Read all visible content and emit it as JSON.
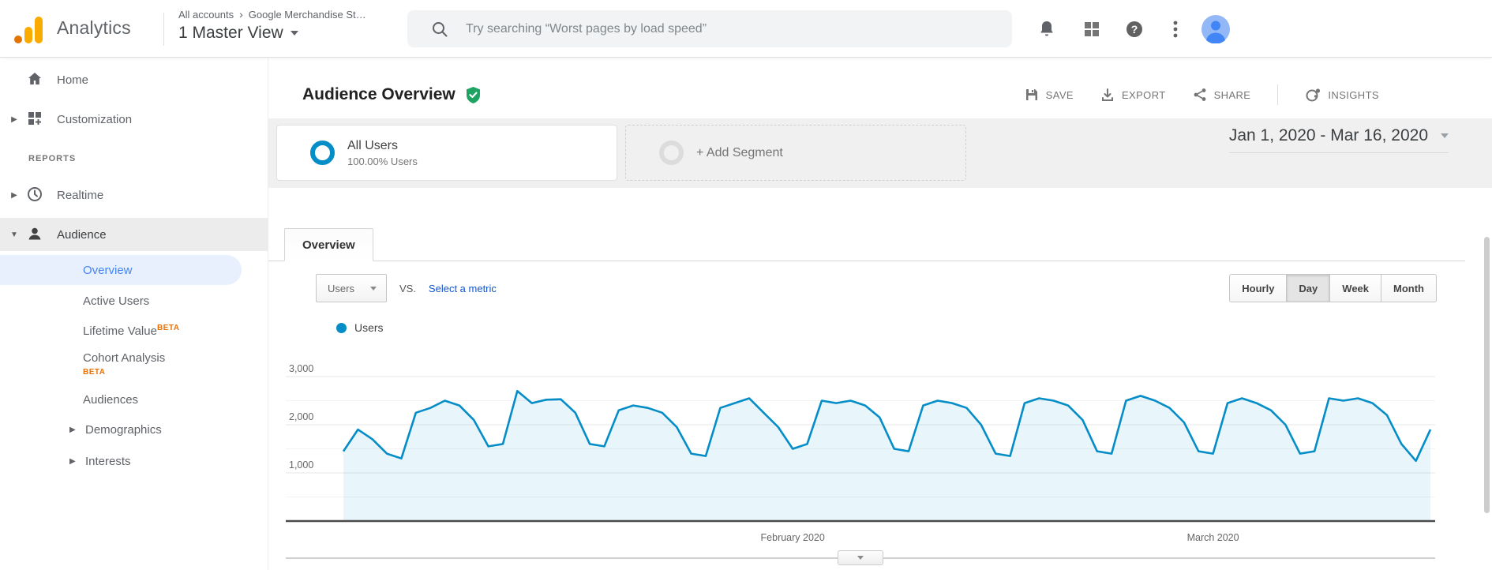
{
  "header": {
    "product": "Analytics",
    "breadcrumb": {
      "root": "All accounts",
      "separator": "›",
      "current": "Google Merchandise St…"
    },
    "view": "1 Master View",
    "search": {
      "placeholder": "Try searching “Worst pages by load speed”"
    }
  },
  "sidebar": {
    "home": "Home",
    "customization": "Customization",
    "section_reports": "REPORTS",
    "realtime": "Realtime",
    "audience": "Audience",
    "audience_children": [
      {
        "label": "Overview",
        "selected": true
      },
      {
        "label": "Active Users"
      },
      {
        "label": "Lifetime Value",
        "beta": "BETA"
      },
      {
        "label": "Cohort Analysis",
        "beta": "BETA"
      },
      {
        "label": "Audiences"
      },
      {
        "label": "Demographics",
        "expandable": true
      },
      {
        "label": "Interests",
        "expandable": true
      }
    ]
  },
  "main": {
    "title": "Audience Overview",
    "actions": {
      "save": "SAVE",
      "export": "EXPORT",
      "share": "SHARE",
      "insights": "INSIGHTS"
    },
    "segments": {
      "all_users_name": "All Users",
      "all_users_detail": "100.00% Users",
      "add_segment": "+ Add Segment"
    },
    "date_range": "Jan 1, 2020 - Mar 16, 2020",
    "tab_overview": "Overview",
    "metric": {
      "selected": "Users",
      "vs": "VS.",
      "compare_link": "Select a metric"
    },
    "granularity": {
      "options": [
        "Hourly",
        "Day",
        "Week",
        "Month"
      ],
      "selected": "Day"
    },
    "legend_users": "Users"
  },
  "colors": {
    "accent-blue": "#058dc7",
    "link-blue": "#4285f4",
    "selected-bg": "#e8f0fe",
    "beta-orange": "#e8710a",
    "shield-green": "#1ea362",
    "logo-amber": "#f9ab00",
    "logo-deep": "#e37400"
  },
  "chart_data": {
    "type": "line",
    "title": "Users",
    "legend_position": "top-left",
    "grid": true,
    "x_start": "Jan 1, 2020",
    "x_end": "Mar 16, 2020",
    "x_unit": "day",
    "ylim": [
      0,
      3000
    ],
    "y_ticks": [
      {
        "value": 1000,
        "label": "1,000"
      },
      {
        "value": 2000,
        "label": "2,000"
      },
      {
        "value": 3000,
        "label": "3,000"
      }
    ],
    "x_labels": [
      {
        "label": "February 2020",
        "index": 31
      },
      {
        "label": "March 2020",
        "index": 60
      }
    ],
    "series": [
      {
        "name": "Users",
        "color": "#058dc7",
        "fill": "rgba(5,141,199,0.09)",
        "values": [
          1450,
          1900,
          1700,
          1400,
          1300,
          2250,
          2350,
          2500,
          2400,
          2100,
          1550,
          1600,
          2700,
          2450,
          2520,
          2530,
          2250,
          1600,
          1550,
          2300,
          2400,
          2350,
          2250,
          1950,
          1400,
          1350,
          2350,
          2450,
          2550,
          2250,
          1950,
          1500,
          1600,
          2500,
          2450,
          2500,
          2400,
          2150,
          1500,
          1450,
          2400,
          2500,
          2450,
          2350,
          2000,
          1400,
          1350,
          2450,
          2550,
          2500,
          2400,
          2100,
          1450,
          1400,
          2500,
          2600,
          2500,
          2350,
          2050,
          1450,
          1400,
          2450,
          2550,
          2450,
          2300,
          2000,
          1400,
          1450,
          2550,
          2500,
          2550,
          2450,
          2200,
          1600,
          1250,
          1900
        ]
      }
    ]
  }
}
